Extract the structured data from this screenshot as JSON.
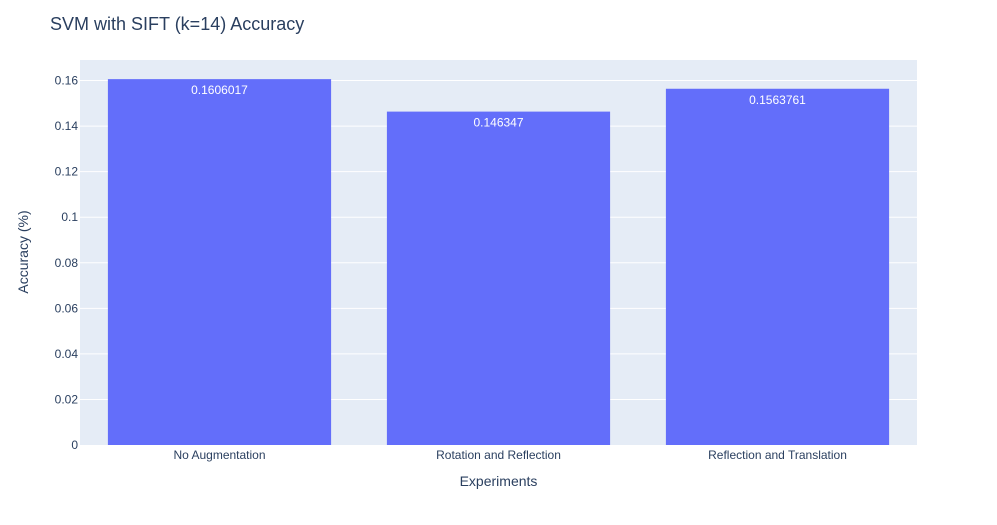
{
  "chart_data": {
    "type": "bar",
    "title": "SVM with SIFT (k=14) Accuracy",
    "xlabel": "Experiments",
    "ylabel": "Accuracy (%)",
    "categories": [
      "No Augmentation",
      "Rotation and Reflection",
      "Reflection and Translation"
    ],
    "values": [
      0.1606017,
      0.146347,
      0.1563761
    ],
    "value_labels": [
      "0.1606017",
      "0.146347",
      "0.1563761"
    ],
    "ylim": [
      0,
      0.169
    ],
    "yticks": [
      0,
      0.02,
      0.04,
      0.06,
      0.08,
      0.1,
      0.12,
      0.14,
      0.16
    ],
    "ytick_labels": [
      "0",
      "0.02",
      "0.04",
      "0.06",
      "0.08",
      "0.1",
      "0.12",
      "0.14",
      "0.16"
    ],
    "grid": true,
    "legend": "none",
    "colors": {
      "bar": "#636efa",
      "plot_bg": "#e5ecf6",
      "grid": "#ffffff",
      "text": "#2a3f5f"
    }
  }
}
